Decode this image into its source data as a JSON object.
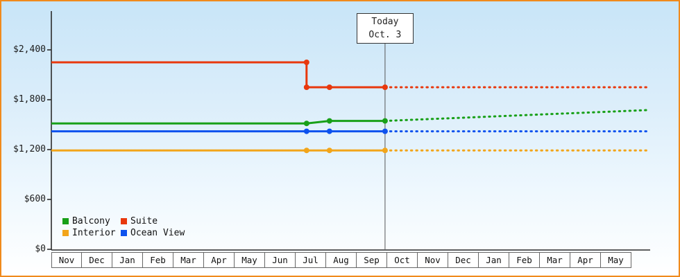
{
  "colors": {
    "frame_border": "#f08a1c",
    "axis": "#2b2b2b",
    "today_line": "#555555"
  },
  "chart_data": {
    "type": "line",
    "title": "",
    "x_axis": {
      "months": [
        "Nov",
        "Dec",
        "Jan",
        "Feb",
        "Mar",
        "Apr",
        "May",
        "Jun",
        "Jul",
        "Aug",
        "Sep",
        "Oct",
        "Nov",
        "Dec",
        "Jan",
        "Feb",
        "Mar",
        "Apr",
        "May"
      ]
    },
    "y_axis": {
      "ticks": [
        0,
        600,
        1200,
        1800,
        2400
      ],
      "labels": [
        "$0",
        "$600",
        "$1,200",
        "$1,800",
        "$2,400"
      ],
      "range": [
        0,
        2850
      ]
    },
    "today": {
      "line1": "Today",
      "line2": "Oct. 3",
      "x": 10.93
    },
    "legend": {
      "items": [
        {
          "label": "Balcony",
          "color": "#18a018"
        },
        {
          "label": "Suite",
          "color": "#e8380d"
        },
        {
          "label": "Interior",
          "color": "#f2a51a"
        },
        {
          "label": "Ocean View",
          "color": "#0d52ee"
        }
      ]
    },
    "series": [
      {
        "name": "Suite",
        "color": "#e8380d",
        "solid": [
          [
            0,
            2250
          ],
          [
            8.36,
            2250
          ],
          [
            8.36,
            1950
          ],
          [
            10.93,
            1950
          ]
        ],
        "dashed": [
          [
            10.93,
            1950
          ],
          [
            19.5,
            1950
          ]
        ],
        "markers": [
          [
            8.36,
            2250
          ],
          [
            8.36,
            1950
          ],
          [
            9.11,
            1950
          ],
          [
            10.93,
            1950
          ]
        ]
      },
      {
        "name": "Balcony",
        "color": "#18a018",
        "solid": [
          [
            0,
            1515
          ],
          [
            8.36,
            1515
          ],
          [
            9.11,
            1545
          ],
          [
            10.93,
            1545
          ]
        ],
        "dashed": [
          [
            10.93,
            1545
          ],
          [
            19.5,
            1675
          ]
        ],
        "markers": [
          [
            8.36,
            1515
          ],
          [
            9.11,
            1545
          ],
          [
            10.93,
            1545
          ]
        ]
      },
      {
        "name": "Ocean View",
        "color": "#0d52ee",
        "solid": [
          [
            0,
            1420
          ],
          [
            10.93,
            1420
          ]
        ],
        "dashed": [
          [
            10.93,
            1420
          ],
          [
            19.5,
            1420
          ]
        ],
        "markers": [
          [
            8.36,
            1420
          ],
          [
            9.11,
            1420
          ],
          [
            10.93,
            1420
          ]
        ]
      },
      {
        "name": "Interior",
        "color": "#f2a51a",
        "solid": [
          [
            0,
            1190
          ],
          [
            10.93,
            1190
          ]
        ],
        "dashed": [
          [
            10.93,
            1190
          ],
          [
            19.5,
            1190
          ]
        ],
        "markers": [
          [
            8.36,
            1190
          ],
          [
            9.11,
            1190
          ],
          [
            10.93,
            1190
          ]
        ]
      }
    ]
  }
}
